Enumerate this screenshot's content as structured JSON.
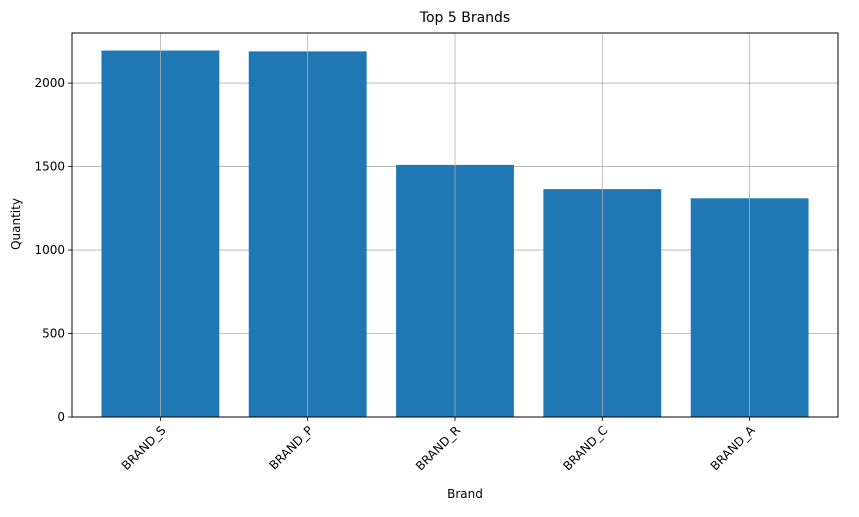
{
  "chart_data": {
    "type": "bar",
    "title": "Top 5 Brands",
    "xlabel": "Brand",
    "ylabel": "Quantity",
    "categories": [
      "BRAND_S",
      "BRAND_P",
      "BRAND_R",
      "BRAND_C",
      "BRAND_A"
    ],
    "values": [
      2195,
      2190,
      1510,
      1365,
      1310
    ],
    "ylim": [
      0,
      2300
    ],
    "yticks": [
      0,
      500,
      1000,
      1500,
      2000
    ],
    "grid": true,
    "legend": "none",
    "bar_color": "#1f77b4",
    "grid_color": "#b0b0b0",
    "x_tick_rotation_deg": 45
  }
}
